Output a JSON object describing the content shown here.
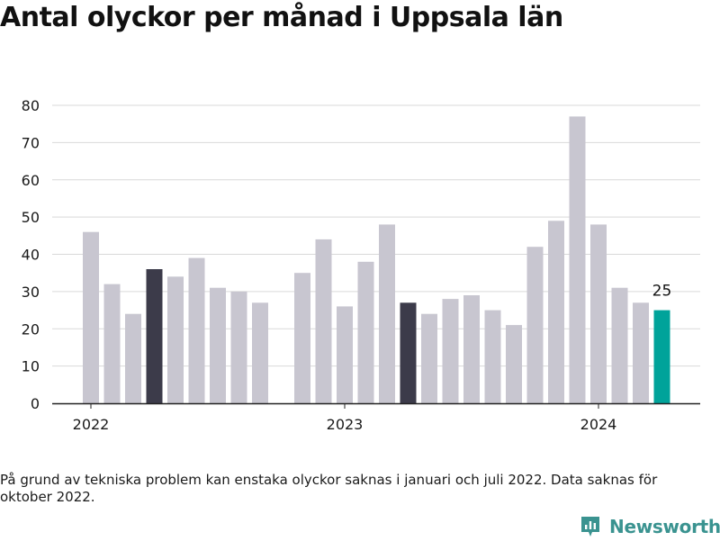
{
  "title": "Antal olyckor per månad i Uppsala län",
  "footnote": "På grund av tekniska problem kan enstaka olyckor saknas i januari och juli 2022. Data saknas för oktober 2022.",
  "brand": "Newsworthy",
  "colors": {
    "default": "#c8c6d0",
    "highlight": "#3c3b4a",
    "latest": "#00a39a",
    "grid": "#d9d9d9",
    "axis": "#222222",
    "brand": "#3a9390"
  },
  "chart_data": {
    "type": "bar",
    "ylim": [
      0,
      80
    ],
    "yticks": [
      0,
      10,
      20,
      30,
      40,
      50,
      60,
      70,
      80
    ],
    "grid": true,
    "xticks": [
      {
        "label": "2022",
        "index": 0
      },
      {
        "label": "2023",
        "index": 12
      },
      {
        "label": "2024",
        "index": 24
      }
    ],
    "months": [
      "2022-01",
      "2022-02",
      "2022-03",
      "2022-04",
      "2022-05",
      "2022-06",
      "2022-07",
      "2022-08",
      "2022-09",
      "2022-10",
      "2022-11",
      "2022-12",
      "2023-01",
      "2023-02",
      "2023-03",
      "2023-04",
      "2023-05",
      "2023-06",
      "2023-07",
      "2023-08",
      "2023-09",
      "2023-10",
      "2023-11",
      "2023-12",
      "2024-01",
      "2024-02",
      "2024-03",
      "2024-04"
    ],
    "values": [
      46,
      32,
      24,
      36,
      34,
      39,
      31,
      30,
      27,
      null,
      35,
      44,
      26,
      38,
      48,
      27,
      24,
      28,
      29,
      25,
      21,
      42,
      49,
      77,
      48,
      31,
      27,
      25
    ],
    "highlight": [
      "2022-04",
      "2023-04"
    ],
    "latest": "2024-04",
    "latest_label": "25"
  }
}
